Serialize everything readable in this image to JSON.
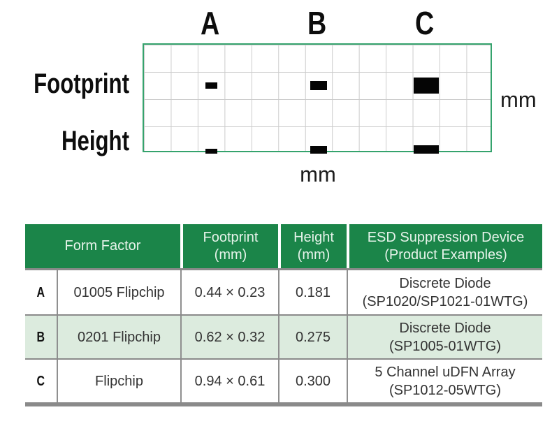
{
  "colors": {
    "header_green": "#1b8549",
    "row_highlight_green": "#dcebde",
    "grid_border_green": "#35a36d",
    "grid_line_gray": "#cccccc",
    "divider_gray": "#8a8a8a",
    "header_text": "#e6f3ea",
    "body_text": "#333333",
    "device_rect_black": "#050505"
  },
  "diagram": {
    "column_labels": [
      "A",
      "B",
      "C"
    ],
    "row_labels": [
      "Footprint",
      "Height"
    ],
    "unit_right": "mm",
    "unit_bottom": "mm",
    "grid_cols": 13,
    "grid_rows": 4,
    "column_centers_cells": [
      2.5,
      6.5,
      10.5
    ],
    "footprint_row_center_cells": 1.5,
    "devices": [
      {
        "label": "A",
        "footprint_mm": [
          0.44,
          0.23
        ],
        "height_mm": 0.181
      },
      {
        "label": "B",
        "footprint_mm": [
          0.62,
          0.32
        ],
        "height_mm": 0.275
      },
      {
        "label": "C",
        "footprint_mm": [
          0.94,
          0.61
        ],
        "height_mm": 0.3
      }
    ]
  },
  "table": {
    "header": {
      "form_factor": [
        "Form Factor"
      ],
      "footprint": [
        "Footprint",
        "(mm)"
      ],
      "height": [
        "Height",
        "(mm)"
      ],
      "device": [
        "ESD Suppression Device",
        "(Product Examples)"
      ]
    },
    "rows": [
      {
        "key": "A",
        "form_factor": "01005 Flipchip",
        "footprint": "0.44 × 0.23",
        "height": "0.181",
        "device": [
          "Discrete Diode",
          "(SP1020/SP1021-01WTG)"
        ]
      },
      {
        "key": "B",
        "form_factor": "0201 Flipchip",
        "footprint": "0.62 × 0.32",
        "height": "0.275",
        "device": [
          "Discrete Diode",
          "(SP1005-01WTG)"
        ]
      },
      {
        "key": "C",
        "form_factor": "Flipchip",
        "footprint": "0.94 × 0.61",
        "height": "0.300",
        "device": [
          "5 Channel uDFN Array",
          "(SP1012-05WTG)"
        ]
      }
    ]
  }
}
